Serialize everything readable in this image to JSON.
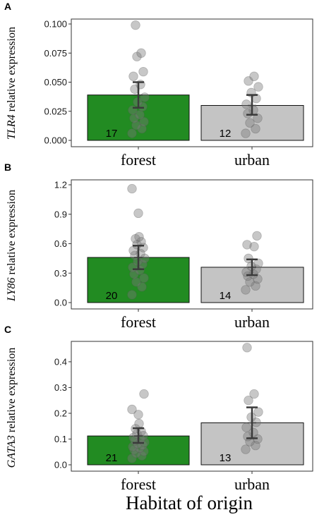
{
  "colors": {
    "forest": "#228b22",
    "urban": "#c4c4c4",
    "points": "#7a7a7a"
  },
  "x_axis_title": "Habitat of origin",
  "chart_data": [
    {
      "panel": "A",
      "type": "bar",
      "categories": [
        "forest",
        "urban"
      ],
      "ylabel_gene": "TLR4",
      "ylabel_rest": "relative expression",
      "ylim": [
        0,
        0.1
      ],
      "yticks": [
        0.0,
        0.025,
        0.05,
        0.075,
        0.1
      ],
      "ytick_labels": [
        "0.000",
        "0.025",
        "0.050",
        "0.075",
        "0.100"
      ],
      "bars": [
        {
          "category": "forest",
          "mean": 0.039,
          "n": "17",
          "error": [
            0.028,
            0.05
          ],
          "points": [
            0.006,
            0.01,
            0.013,
            0.016,
            0.019,
            0.022,
            0.026,
            0.029,
            0.033,
            0.037,
            0.044,
            0.048,
            0.055,
            0.059,
            0.072,
            0.075,
            0.099
          ]
        },
        {
          "category": "urban",
          "mean": 0.03,
          "n": "12",
          "error": [
            0.022,
            0.039
          ],
          "points": [
            0.006,
            0.01,
            0.015,
            0.019,
            0.023,
            0.026,
            0.031,
            0.036,
            0.041,
            0.046,
            0.051,
            0.055
          ]
        }
      ]
    },
    {
      "panel": "B",
      "type": "bar",
      "categories": [
        "forest",
        "urban"
      ],
      "ylabel_gene": "LY86",
      "ylabel_rest": "relative expression",
      "ylim": [
        0,
        1.2
      ],
      "yticks": [
        0.0,
        0.3,
        0.6,
        0.9,
        1.2
      ],
      "ytick_labels": [
        "0.0",
        "0.3",
        "0.6",
        "0.9",
        "1.2"
      ],
      "bars": [
        {
          "category": "forest",
          "mean": 0.46,
          "n": "20",
          "error": [
            0.34,
            0.58
          ],
          "points": [
            0.08,
            0.16,
            0.21,
            0.25,
            0.29,
            0.33,
            0.36,
            0.39,
            0.42,
            0.45,
            0.48,
            0.5,
            0.53,
            0.56,
            0.59,
            0.62,
            0.65,
            0.67,
            0.91,
            1.16
          ]
        },
        {
          "category": "urban",
          "mean": 0.36,
          "n": "14",
          "error": [
            0.28,
            0.44
          ],
          "points": [
            0.13,
            0.17,
            0.21,
            0.24,
            0.27,
            0.29,
            0.31,
            0.34,
            0.37,
            0.4,
            0.45,
            0.57,
            0.59,
            0.68
          ]
        }
      ]
    },
    {
      "panel": "C",
      "type": "bar",
      "categories": [
        "forest",
        "urban"
      ],
      "ylabel_gene": "GATA3",
      "ylabel_rest": "relative expression",
      "ylim": [
        0,
        0.46
      ],
      "yticks": [
        0.0,
        0.1,
        0.2,
        0.3,
        0.4
      ],
      "ytick_labels": [
        "0.0",
        "0.1",
        "0.2",
        "0.3",
        "0.4"
      ],
      "bars": [
        {
          "category": "forest",
          "mean": 0.112,
          "n": "21",
          "error": [
            0.085,
            0.142
          ],
          "points": [
            0.025,
            0.035,
            0.045,
            0.052,
            0.058,
            0.065,
            0.07,
            0.076,
            0.082,
            0.088,
            0.094,
            0.1,
            0.106,
            0.113,
            0.12,
            0.13,
            0.14,
            0.16,
            0.195,
            0.215,
            0.275
          ]
        },
        {
          "category": "urban",
          "mean": 0.163,
          "n": "13",
          "error": [
            0.103,
            0.223
          ],
          "points": [
            0.06,
            0.075,
            0.09,
            0.1,
            0.11,
            0.125,
            0.145,
            0.165,
            0.185,
            0.205,
            0.25,
            0.275,
            0.455
          ]
        }
      ]
    }
  ]
}
